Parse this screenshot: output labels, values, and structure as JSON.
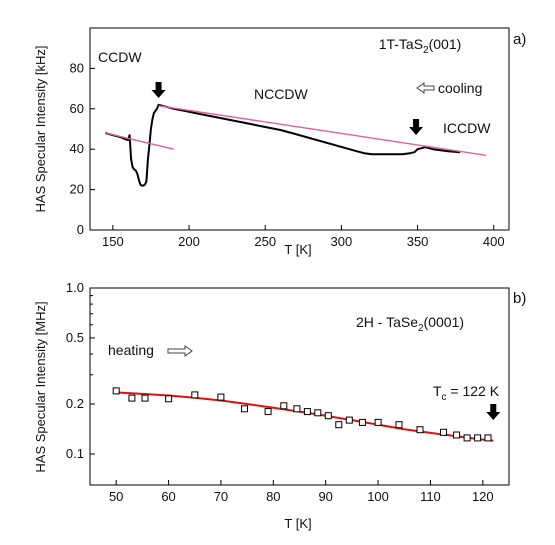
{
  "chart_data": [
    {
      "type": "line",
      "panel_label": "a)",
      "xlabel": "T [K]",
      "ylabel": "HAS Specular Intensity [kHz]",
      "xlim": [
        135,
        410
      ],
      "ylim": [
        0,
        100
      ],
      "x_ticks": [
        "150",
        "200",
        "250",
        "300",
        "350",
        "400"
      ],
      "y_ticks": [
        "0",
        "20",
        "40",
        "60",
        "80"
      ],
      "annotations": {
        "ccdw": "CCDW",
        "nccdw": "NCCDW",
        "iccdw": "ICCDW",
        "sample_prefix": "1T-TaS",
        "sample_sub": "2",
        "sample_suffix": "(001)",
        "cooling": "cooling",
        "cooling_arrow": "hollow-arrow-left",
        "transition_markers": [
          180,
          349
        ]
      },
      "series": [
        {
          "color": "#000000",
          "x": [
            145,
            150,
            155,
            158,
            160,
            161,
            162,
            163,
            164,
            165,
            166,
            167,
            168,
            169,
            170,
            171,
            172,
            173,
            174,
            175,
            176,
            177,
            178,
            179,
            180,
            185,
            190,
            200,
            210,
            220,
            230,
            240,
            250,
            260,
            270,
            310,
            315,
            320,
            330,
            340,
            345,
            348,
            350,
            355,
            360,
            370,
            378
          ],
          "y": [
            48,
            47,
            46,
            45,
            44.5,
            47,
            35,
            31,
            30,
            29.5,
            28,
            25,
            22.5,
            22,
            22,
            22.5,
            24,
            35,
            42,
            50,
            55,
            58,
            59,
            60,
            62,
            61,
            60,
            58.5,
            57,
            55.5,
            54,
            52.5,
            51,
            49.5,
            47.5,
            39,
            38,
            37.5,
            37.5,
            37.5,
            38,
            38.5,
            40,
            41,
            40,
            39,
            38.5
          ]
        },
        {
          "color": "#e0609a",
          "x": [
            145,
            190
          ],
          "y": [
            48,
            40
          ]
        },
        {
          "color": "#e0609a",
          "x": [
            180,
            395
          ],
          "y": [
            61.5,
            37
          ]
        }
      ]
    },
    {
      "type": "scatter",
      "panel_label": "b)",
      "xlabel": "T [K]",
      "ylabel": "HAS Specular Intensity [MHz]",
      "yscale": "log",
      "xlim": [
        45,
        125
      ],
      "ylim": [
        0.065,
        1.0
      ],
      "x_ticks": [
        "50",
        "60",
        "70",
        "80",
        "90",
        "100",
        "110",
        "120"
      ],
      "y_ticks": [
        "0.1",
        "0.2",
        "0.5",
        "1.0"
      ],
      "annotations": {
        "sample_prefix": "2H - TaSe",
        "sample_sub": "2",
        "sample_suffix": "(0001)",
        "heating": "heating",
        "heating_arrow": "hollow-arrow-right",
        "tc_prefix": "T",
        "tc_sub": "c",
        "tc_suffix": " = 122 K",
        "transition_marker": 122
      },
      "series": [
        {
          "marker": "open-square",
          "color": "#000000",
          "x": [
            50,
            53,
            55.5,
            60,
            65,
            70,
            74.5,
            79,
            82,
            84.5,
            86.5,
            88.5,
            90.5,
            92.5,
            94.5,
            97,
            100,
            104,
            108,
            112.5,
            115,
            117,
            119,
            121
          ],
          "y": [
            0.24,
            0.217,
            0.217,
            0.215,
            0.227,
            0.22,
            0.187,
            0.18,
            0.195,
            0.187,
            0.18,
            0.177,
            0.17,
            0.15,
            0.16,
            0.155,
            0.155,
            0.15,
            0.14,
            0.135,
            0.13,
            0.125,
            0.125,
            0.125
          ]
        },
        {
          "marker": "none",
          "color": "#e01010",
          "x": [
            50,
            55,
            60,
            65,
            70,
            75,
            80,
            85,
            90,
            95,
            100,
            105,
            110,
            115,
            120,
            122
          ],
          "y": [
            0.235,
            0.23,
            0.225,
            0.218,
            0.21,
            0.2,
            0.19,
            0.18,
            0.17,
            0.16,
            0.15,
            0.141,
            0.134,
            0.128,
            0.122,
            0.12
          ]
        }
      ]
    }
  ]
}
